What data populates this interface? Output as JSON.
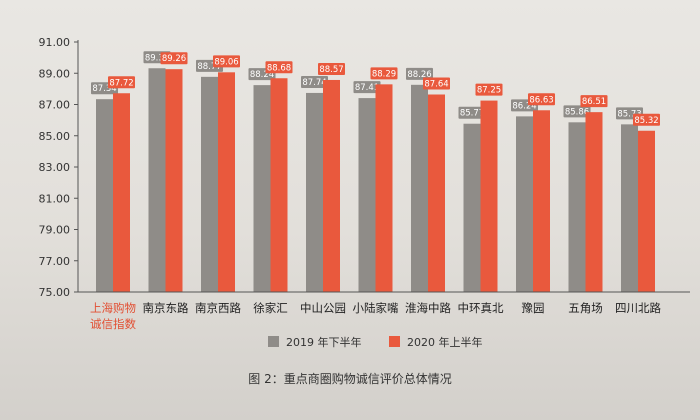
{
  "chart_data": {
    "type": "bar",
    "categories": [
      "上海购物诚信指数",
      "南京东路",
      "南京西路",
      "徐家汇",
      "中山公园",
      "小陆家嘴",
      "淮海中路",
      "中环真北",
      "豫园",
      "五角场",
      "四川北路"
    ],
    "category_lines": [
      [
        "上海购物",
        "诚信指数"
      ],
      [
        "南京东路"
      ],
      [
        "南京西路"
      ],
      [
        "徐家汇"
      ],
      [
        "中山公园"
      ],
      [
        "小陆家嘴"
      ],
      [
        "淮海中路"
      ],
      [
        "中环真北"
      ],
      [
        "豫园"
      ],
      [
        "五角场"
      ],
      [
        "四川北路"
      ]
    ],
    "series": [
      {
        "name": "2019 年下半年",
        "color": "#8f8c88",
        "values": [
          87.34,
          89.32,
          88.77,
          88.24,
          87.74,
          87.41,
          88.26,
          85.77,
          86.24,
          85.86,
          85.73
        ]
      },
      {
        "name": "2020 年上半年",
        "color": "#e9593d",
        "values": [
          87.72,
          89.26,
          89.06,
          88.68,
          88.57,
          88.29,
          87.64,
          87.25,
          86.63,
          86.51,
          85.32
        ]
      }
    ],
    "y_ticks": [
      "91.00",
      "89.00",
      "87.00",
      "85.00",
      "83.00",
      "81.00",
      "79.00",
      "77.00",
      "75.00"
    ],
    "ylim": [
      75,
      91
    ],
    "grid": false,
    "legend_position": "bottom",
    "highlight_category_color": "#e24f33",
    "caption": "图 2：重点商圈购物诚信评价总体情况"
  }
}
